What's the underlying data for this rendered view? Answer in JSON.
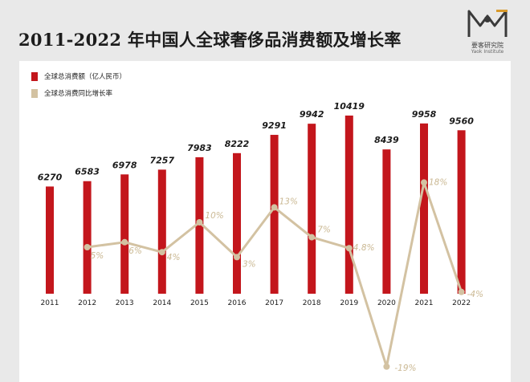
{
  "page_title": "2011-2022 年中国人全球奢侈品消费额及增长率",
  "logo": {
    "name_cn": "要客研究院",
    "name_en": "Yaok Institute",
    "icon": "yaok-logo-icon"
  },
  "colors": {
    "bar": "#c3161c",
    "line": "#d3c2a2",
    "line_label": "#cbb994"
  },
  "chart_data": {
    "type": "bar",
    "title": "2011-2022 年中国人全球奢侈品消费额及增长率",
    "categories": [
      "2011",
      "2012",
      "2013",
      "2014",
      "2015",
      "2016",
      "2017",
      "2018",
      "2019",
      "2020",
      "2021",
      "2022"
    ],
    "series": [
      {
        "name": "全球总消费额（亿人民币）",
        "type": "bar",
        "values": [
          6270,
          6583,
          6978,
          7257,
          7983,
          8222,
          9291,
          9942,
          10419,
          8439,
          9958,
          9560
        ],
        "labels": [
          "6270",
          "6583",
          "6978",
          "7257",
          "7983",
          "8222",
          "9291",
          "9942",
          "10419",
          "8439",
          "9958",
          "9560"
        ]
      },
      {
        "name": "全球总消费同比增长率",
        "type": "line",
        "values": [
          null,
          5,
          6,
          4,
          10,
          3,
          13,
          7,
          4.8,
          -19,
          18,
          -4
        ],
        "labels": [
          "",
          "5%",
          "6%",
          "4%",
          "10%",
          "3%",
          "13%",
          "7%",
          "4.8%",
          "-19%",
          "18%",
          "-4%"
        ]
      }
    ],
    "xlabel": "",
    "ylabel": "",
    "grid": false,
    "legend": "top-left"
  }
}
